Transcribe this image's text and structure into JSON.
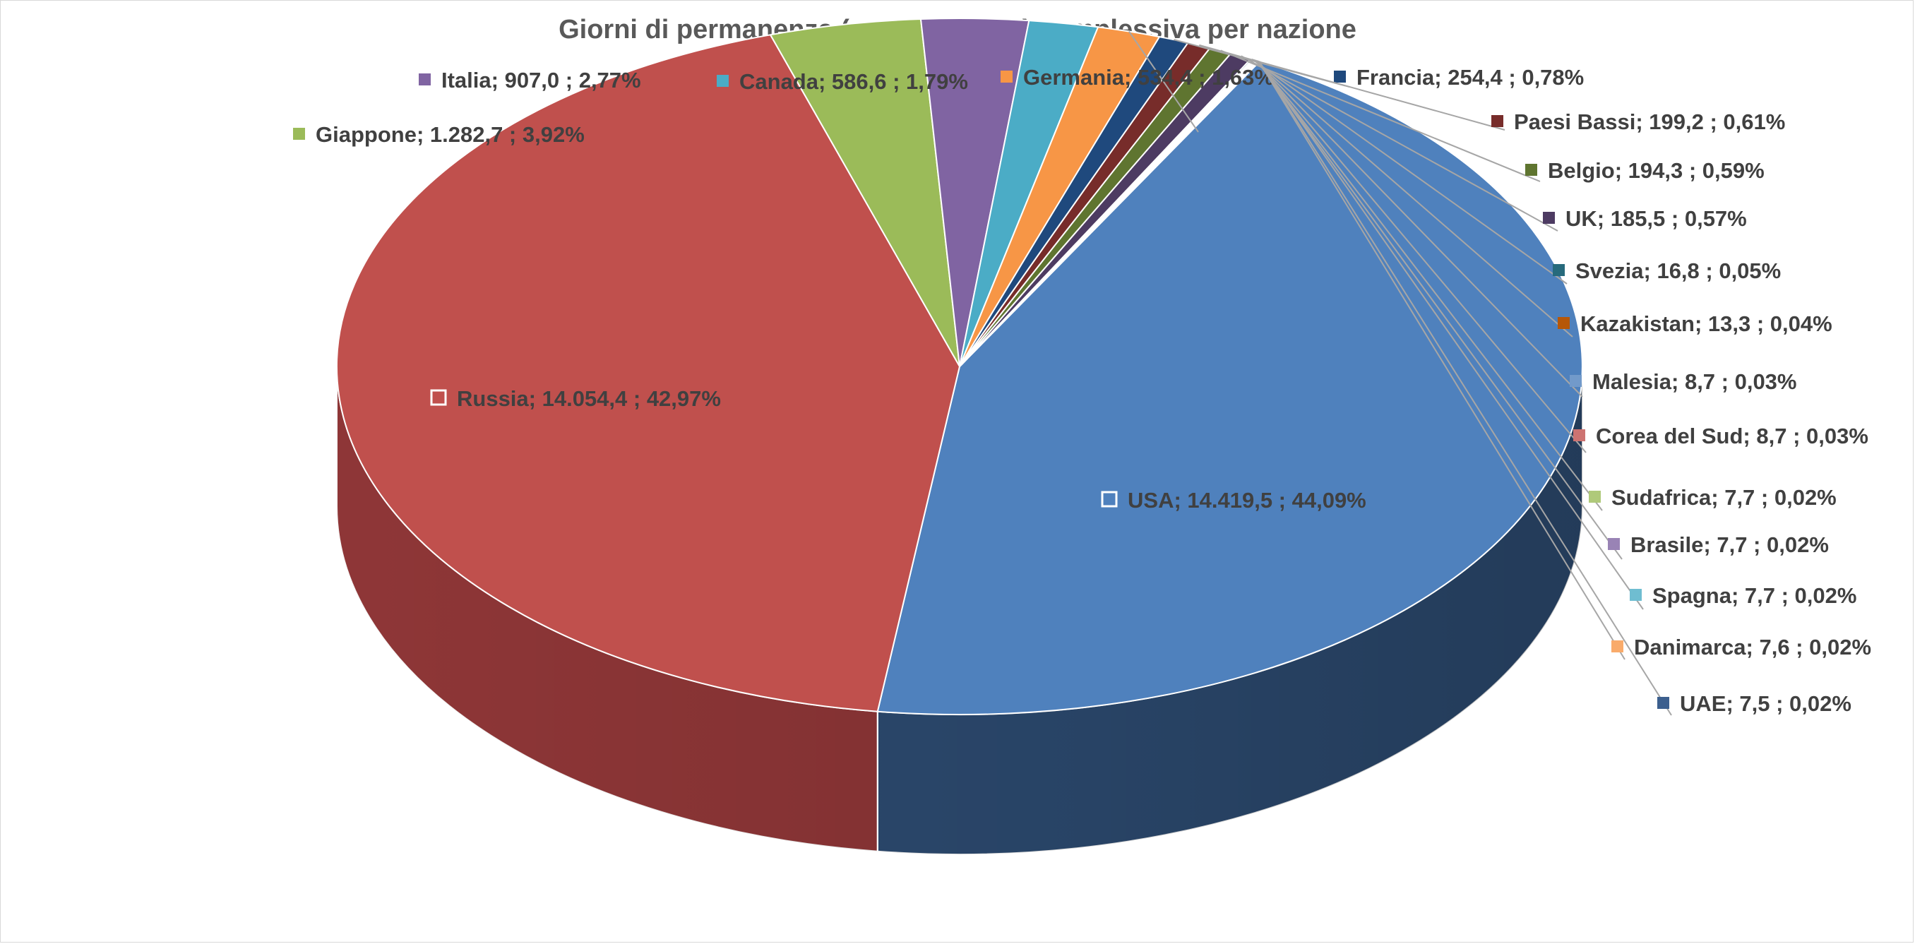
{
  "chart_data": {
    "type": "pie",
    "title": "Giorni di permanenza (e percentuale) complessiva per nazione",
    "three_d": true,
    "legend": "none",
    "slices": [
      {
        "name": "USA",
        "value": "14.419,5",
        "percent": "44,09%",
        "pct": 44.09,
        "color": "#4f81bd",
        "side": "#2f4f77"
      },
      {
        "name": "Russia",
        "value": "14.054,4",
        "percent": "42,97%",
        "pct": 42.97,
        "color": "#c0504d",
        "side": "#96393a"
      },
      {
        "name": "Giappone",
        "value": "1.282,7",
        "percent": "3,92%",
        "pct": 3.92,
        "color": "#9bbb59",
        "side": "#789243"
      },
      {
        "name": "Italia",
        "value": "907,0",
        "percent": "2,77%",
        "pct": 2.77,
        "color": "#8064a2",
        "side": "#614b7c"
      },
      {
        "name": "Canada",
        "value": "586,6",
        "percent": "1,79%",
        "pct": 1.79,
        "color": "#4bacc6",
        "side": "#368396"
      },
      {
        "name": "Germania",
        "value": "534,4",
        "percent": "1,63%",
        "pct": 1.63,
        "color": "#f79646",
        "side": "#c07030"
      },
      {
        "name": "Francia",
        "value": "254,4",
        "percent": "0,78%",
        "pct": 0.78,
        "color": "#1f497d",
        "side": "#17375e"
      },
      {
        "name": "Paesi Bassi",
        "value": "199,2",
        "percent": "0,61%",
        "pct": 0.61,
        "color": "#772c2a",
        "side": "#5a2120"
      },
      {
        "name": "Belgio",
        "value": "194,3",
        "percent": "0,59%",
        "pct": 0.59,
        "color": "#5f7530",
        "side": "#475824"
      },
      {
        "name": "UK",
        "value": "185,5",
        "percent": "0,57%",
        "pct": 0.57,
        "color": "#4d3b62",
        "side": "#3a2c4a"
      },
      {
        "name": "Svezia",
        "value": "16,8",
        "percent": "0,05%",
        "pct": 0.05,
        "color": "#276a7c",
        "side": "#1d505d"
      },
      {
        "name": "Kazakistan",
        "value": "13,3",
        "percent": "0,04%",
        "pct": 0.04,
        "color": "#b65708",
        "side": "#894106"
      },
      {
        "name": "Malesia",
        "value": "8,7",
        "percent": "0,03%",
        "pct": 0.03,
        "color": "#729aca",
        "side": "#5574a0"
      },
      {
        "name": "Corea del Sud",
        "value": "8,7",
        "percent": "0,03%",
        "pct": 0.03,
        "color": "#cd7371",
        "side": "#a05a58"
      },
      {
        "name": "Sudafrica",
        "value": "7,7",
        "percent": "0,02%",
        "pct": 0.02,
        "color": "#afc97a",
        "side": "#8aa05f"
      },
      {
        "name": "Brasile",
        "value": "7,7",
        "percent": "0,02%",
        "pct": 0.02,
        "color": "#9983b5",
        "side": "#78678e"
      },
      {
        "name": "Spagna",
        "value": "7,7",
        "percent": "0,02%",
        "pct": 0.02,
        "color": "#6fbdd1",
        "side": "#5696a6"
      },
      {
        "name": "Danimarca",
        "value": "7,6",
        "percent": "0,02%",
        "pct": 0.02,
        "color": "#f9ab6b",
        "side": "#c78753"
      },
      {
        "name": "UAE",
        "value": "7,5",
        "percent": "0,02%",
        "pct": 0.02,
        "color": "#3c5f8e",
        "side": "#2d476b"
      }
    ]
  }
}
